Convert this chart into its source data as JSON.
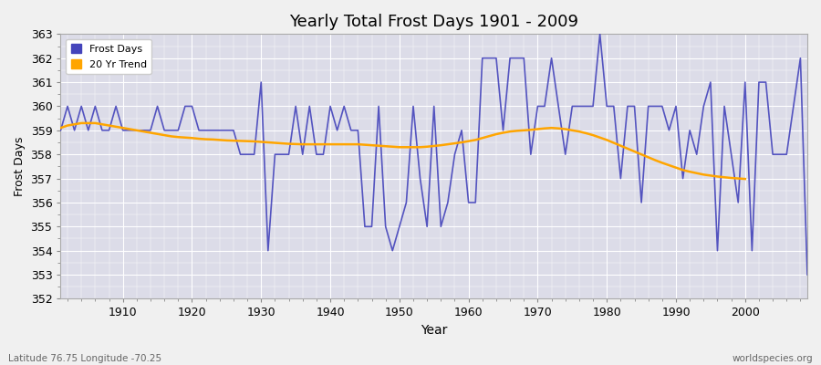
{
  "title": "Yearly Total Frost Days 1901 - 2009",
  "xlabel": "Year",
  "ylabel": "Frost Days",
  "xlim": [
    1901,
    2009
  ],
  "ylim": [
    352,
    363
  ],
  "yticks": [
    352,
    353,
    354,
    355,
    356,
    357,
    358,
    359,
    360,
    361,
    362,
    363
  ],
  "xticks": [
    1910,
    1920,
    1930,
    1940,
    1950,
    1960,
    1970,
    1980,
    1990,
    2000
  ],
  "frost_color": "#4444bb",
  "trend_color": "#FFA500",
  "bg_color": "#f0f0f0",
  "plot_bg_color": "#dcdce8",
  "grid_color": "#ffffff",
  "subtitle_left": "Latitude 76.75 Longitude -70.25",
  "subtitle_right": "worldspecies.org",
  "years": [
    1901,
    1902,
    1903,
    1904,
    1905,
    1906,
    1907,
    1908,
    1909,
    1910,
    1911,
    1912,
    1913,
    1914,
    1915,
    1916,
    1917,
    1918,
    1919,
    1920,
    1921,
    1922,
    1923,
    1924,
    1925,
    1926,
    1927,
    1928,
    1929,
    1930,
    1931,
    1932,
    1933,
    1934,
    1935,
    1936,
    1937,
    1938,
    1939,
    1940,
    1941,
    1942,
    1943,
    1944,
    1945,
    1946,
    1947,
    1948,
    1949,
    1950,
    1951,
    1952,
    1953,
    1954,
    1955,
    1956,
    1957,
    1958,
    1959,
    1960,
    1961,
    1962,
    1963,
    1964,
    1965,
    1966,
    1967,
    1968,
    1969,
    1970,
    1971,
    1972,
    1973,
    1974,
    1975,
    1976,
    1977,
    1978,
    1979,
    1980,
    1981,
    1982,
    1983,
    1984,
    1985,
    1986,
    1987,
    1988,
    1989,
    1990,
    1991,
    1992,
    1993,
    1994,
    1995,
    1996,
    1997,
    1998,
    1999,
    2000,
    2001,
    2002,
    2003,
    2004,
    2005,
    2006,
    2007,
    2008,
    2009
  ],
  "frost_days": [
    359,
    360,
    359,
    360,
    359,
    360,
    359,
    359,
    360,
    359,
    359,
    359,
    359,
    359,
    360,
    359,
    359,
    359,
    360,
    360,
    359,
    359,
    359,
    359,
    359,
    359,
    358,
    358,
    358,
    361,
    354,
    358,
    358,
    358,
    360,
    358,
    360,
    358,
    358,
    360,
    359,
    360,
    359,
    359,
    355,
    355,
    360,
    355,
    354,
    355,
    356,
    360,
    357,
    355,
    360,
    355,
    356,
    358,
    359,
    356,
    356,
    362,
    362,
    362,
    359,
    362,
    362,
    362,
    358,
    360,
    360,
    362,
    360,
    358,
    360,
    360,
    360,
    360,
    363,
    360,
    360,
    357,
    360,
    360,
    356,
    360,
    360,
    360,
    359,
    360,
    357,
    359,
    358,
    360,
    361,
    354,
    360,
    358,
    356,
    361,
    354,
    361,
    361,
    358,
    358,
    358,
    360,
    362,
    353
  ],
  "trend_years": [
    1901,
    1902,
    1903,
    1904,
    1905,
    1906,
    1907,
    1908,
    1909,
    1910,
    1911,
    1912,
    1913,
    1914,
    1915,
    1916,
    1917,
    1918,
    1919,
    1920,
    1921,
    1922,
    1923,
    1924,
    1925,
    1926,
    1927,
    1928,
    1929,
    1930,
    1931,
    1932,
    1933,
    1934,
    1935,
    1936,
    1937,
    1938,
    1939,
    1940,
    1941,
    1942,
    1943,
    1944,
    1945,
    1946,
    1947,
    1948,
    1949,
    1950,
    1951,
    1952,
    1953,
    1954,
    1955,
    1956,
    1957,
    1958,
    1959,
    1960,
    1961,
    1962,
    1963,
    1964,
    1965,
    1966,
    1967,
    1968,
    1969,
    1970,
    1971,
    1972,
    1973,
    1974,
    1975,
    1976,
    1977,
    1978,
    1979,
    1980,
    1981,
    1982,
    1983,
    1984,
    1985,
    1986,
    1987,
    1988,
    1989,
    1990,
    1991,
    1992,
    1993,
    1994,
    1995,
    1996,
    1997,
    1998,
    1999,
    2000
  ],
  "trend_values": [
    359.1,
    359.2,
    359.25,
    359.3,
    359.3,
    359.3,
    359.25,
    359.2,
    359.15,
    359.1,
    359.05,
    359.0,
    358.95,
    358.9,
    358.85,
    358.8,
    358.75,
    358.72,
    358.7,
    358.68,
    358.65,
    358.63,
    358.62,
    358.6,
    358.58,
    358.57,
    358.56,
    358.55,
    358.54,
    358.52,
    358.5,
    358.48,
    358.46,
    358.44,
    358.43,
    358.42,
    358.42,
    358.42,
    358.42,
    358.42,
    358.42,
    358.42,
    358.42,
    358.42,
    358.4,
    358.38,
    358.36,
    358.34,
    358.32,
    358.3,
    358.3,
    358.3,
    358.3,
    358.32,
    358.35,
    358.38,
    358.42,
    358.46,
    358.5,
    358.55,
    358.6,
    358.68,
    358.76,
    358.84,
    358.9,
    358.95,
    358.98,
    359.0,
    359.02,
    359.05,
    359.08,
    359.1,
    359.08,
    359.05,
    359.0,
    358.95,
    358.88,
    358.8,
    358.7,
    358.6,
    358.48,
    358.36,
    358.24,
    358.12,
    358.0,
    357.88,
    357.76,
    357.65,
    357.55,
    357.45,
    357.35,
    357.28,
    357.22,
    357.16,
    357.12,
    357.08,
    357.05,
    357.02,
    357.0,
    356.98
  ]
}
